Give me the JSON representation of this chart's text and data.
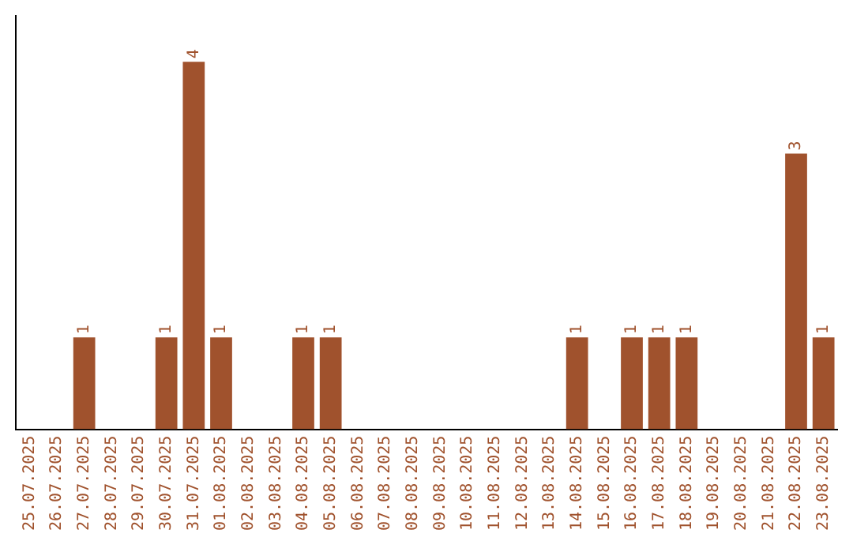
{
  "chart_data": {
    "type": "bar",
    "categories": [
      "25.07.2025",
      "26.07.2025",
      "27.07.2025",
      "28.07.2025",
      "29.07.2025",
      "30.07.2025",
      "31.07.2025",
      "01.08.2025",
      "02.08.2025",
      "03.08.2025",
      "04.08.2025",
      "05.08.2025",
      "06.08.2025",
      "07.08.2025",
      "08.08.2025",
      "09.08.2025",
      "10.08.2025",
      "11.08.2025",
      "12.08.2025",
      "13.08.2025",
      "14.08.2025",
      "15.08.2025",
      "16.08.2025",
      "17.08.2025",
      "18.08.2025",
      "19.08.2025",
      "20.08.2025",
      "21.08.2025",
      "22.08.2025",
      "23.08.2025"
    ],
    "values": [
      0,
      0,
      1,
      0,
      0,
      1,
      4,
      1,
      0,
      0,
      1,
      1,
      0,
      0,
      0,
      0,
      0,
      0,
      0,
      0,
      1,
      0,
      1,
      1,
      1,
      0,
      0,
      0,
      3,
      1
    ],
    "value_labels": [
      null,
      null,
      "1",
      null,
      null,
      "1",
      "4",
      "1",
      null,
      null,
      "1",
      "1",
      null,
      null,
      null,
      null,
      null,
      null,
      null,
      null,
      "1",
      null,
      "1",
      "1",
      "1",
      null,
      null,
      null,
      "3",
      "1"
    ],
    "color": "#a0522d",
    "grid": false,
    "legend": false,
    "tick_labels": "x"
  }
}
